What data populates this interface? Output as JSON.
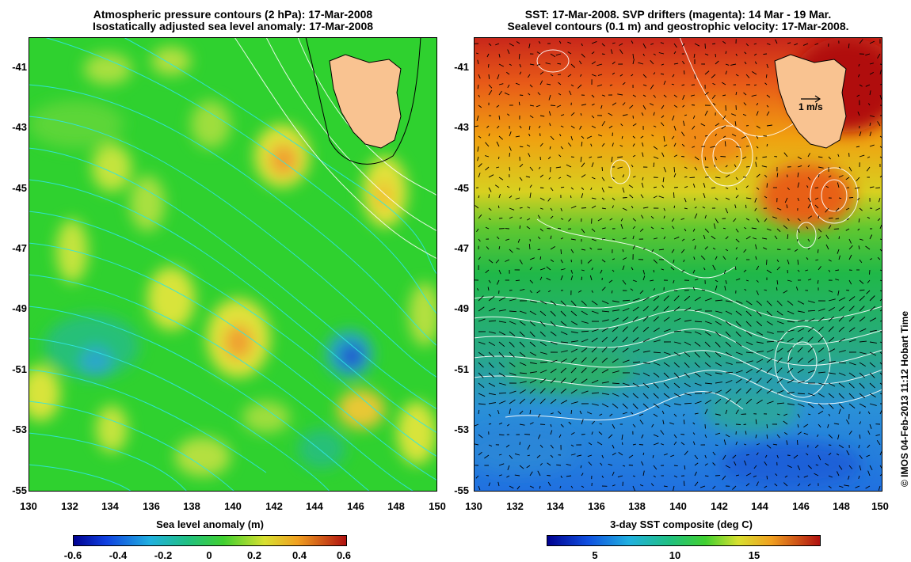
{
  "left_panel": {
    "title_line1": "Atmospheric pressure contours (2 hPa): 17-Mar-2008",
    "title_line2": "Isostatically adjusted sea level anomaly: 17-Mar-2008",
    "y_ticks": [
      "-41",
      "-43",
      "-45",
      "-47",
      "-49",
      "-51",
      "-53",
      "-55"
    ],
    "x_ticks": [
      "130",
      "132",
      "134",
      "136",
      "138",
      "140",
      "142",
      "144",
      "146",
      "148",
      "150"
    ],
    "colorbar_title": "Sea level anomaly (m)",
    "colorbar_ticks": [
      "-0.6",
      "-0.4",
      "-0.2",
      "0",
      "0.2",
      "0.4",
      "0.6"
    ]
  },
  "right_panel": {
    "title_line1": "SST: 17-Mar-2008. SVP drifters (magenta): 14 Mar - 19 Mar.",
    "title_line2": "Sealevel contours (0.1 m) and geostrophic velocity: 17-Mar-2008.",
    "y_ticks": [
      "-41",
      "-43",
      "-45",
      "-47",
      "-49",
      "-51",
      "-53",
      "-55"
    ],
    "x_ticks": [
      "130",
      "132",
      "134",
      "136",
      "138",
      "140",
      "142",
      "144",
      "146",
      "148",
      "150"
    ],
    "velocity_scale_label": "1 m/s",
    "colorbar_title": "3-day SST composite (deg C)",
    "colorbar_ticks": [
      "5",
      "10",
      "15"
    ]
  },
  "credit": "© IMOS 04-Feb-2013 11:12 Hobart Time",
  "colors": {
    "land": "#f9c391",
    "sla_background": "#2ed12e",
    "pressure_contour": "#22e0e0",
    "sst_warm": "#b01010",
    "sst_cold": "#1e78e0"
  }
}
